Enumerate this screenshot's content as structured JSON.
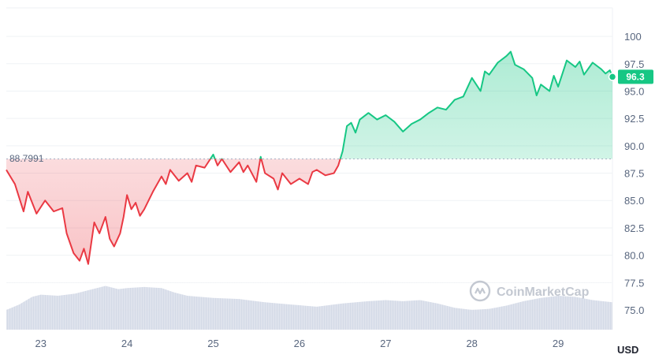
{
  "chart_data": {
    "type": "line",
    "title": "",
    "currency": "USD",
    "watermark": "CoinMarketCap",
    "baseline_value": 88.7991,
    "baseline_label": "88.7991",
    "current_price_label": "96.3",
    "current_price": 96.3,
    "ylim": [
      73.2,
      102.6
    ],
    "y_ticks": [
      75.0,
      77.5,
      80.0,
      82.5,
      85.0,
      87.5,
      90.0,
      92.5,
      95.0,
      97.5,
      100
    ],
    "y_tick_labels": [
      "75.0",
      "77.5",
      "80.0",
      "82.5",
      "85.0",
      "87.5",
      "90.0",
      "92.5",
      "95.0",
      "97.5",
      "100"
    ],
    "xlim": [
      22.6,
      29.63
    ],
    "x_ticks": [
      23,
      24,
      25,
      26,
      27,
      28,
      29
    ],
    "x_tick_labels": [
      "23",
      "24",
      "25",
      "26",
      "27",
      "28",
      "29"
    ],
    "colors": {
      "up": "#16c784",
      "down": "#ea3943",
      "volume": "#cfd6e4",
      "grid": "#eff2f5",
      "baseline": "#a6b0c3"
    },
    "series": [
      {
        "name": "price",
        "x": [
          22.6,
          22.7,
          22.8,
          22.85,
          22.95,
          23.05,
          23.15,
          23.25,
          23.3,
          23.38,
          23.45,
          23.5,
          23.55,
          23.62,
          23.68,
          23.75,
          23.8,
          23.85,
          23.92,
          23.96,
          24.0,
          24.05,
          24.1,
          24.15,
          24.2,
          24.3,
          24.4,
          24.45,
          24.5,
          24.6,
          24.7,
          24.75,
          24.8,
          24.9,
          25.0,
          25.05,
          25.1,
          25.2,
          25.3,
          25.35,
          25.4,
          25.5,
          25.55,
          25.6,
          25.7,
          25.75,
          25.8,
          25.9,
          26.0,
          26.1,
          26.15,
          26.2,
          26.3,
          26.4,
          26.45,
          26.5,
          26.55,
          26.6,
          26.65,
          26.7,
          26.8,
          26.9,
          27.0,
          27.1,
          27.2,
          27.3,
          27.4,
          27.5,
          27.6,
          27.7,
          27.8,
          27.9,
          28.0,
          28.1,
          28.15,
          28.2,
          28.3,
          28.4,
          28.45,
          28.5,
          28.6,
          28.7,
          28.75,
          28.8,
          28.9,
          28.95,
          29.0,
          29.05,
          29.1,
          29.2,
          29.25,
          29.3,
          29.4,
          29.5,
          29.55,
          29.6,
          29.63
        ],
        "y": [
          87.8,
          86.5,
          84.0,
          85.8,
          83.8,
          85.0,
          84.0,
          84.3,
          82.0,
          80.2,
          79.5,
          80.6,
          79.2,
          83.0,
          82.0,
          83.5,
          81.5,
          80.8,
          82.0,
          83.5,
          85.5,
          84.2,
          84.8,
          83.6,
          84.2,
          85.8,
          87.2,
          86.5,
          87.8,
          86.8,
          87.5,
          86.7,
          88.2,
          88.0,
          89.2,
          88.2,
          88.8,
          87.6,
          88.5,
          87.6,
          88.2,
          86.7,
          89.0,
          87.5,
          87.0,
          86.0,
          87.5,
          86.5,
          87.0,
          86.5,
          87.6,
          87.8,
          87.3,
          87.5,
          88.2,
          89.5,
          91.8,
          92.1,
          91.2,
          92.4,
          93.0,
          92.4,
          92.8,
          92.2,
          91.3,
          92.0,
          92.4,
          93.0,
          93.5,
          93.3,
          94.2,
          94.5,
          96.2,
          95.0,
          96.8,
          96.5,
          97.6,
          98.2,
          98.6,
          97.4,
          97.0,
          96.2,
          94.6,
          95.6,
          95.0,
          96.4,
          95.4,
          96.6,
          97.8,
          97.2,
          97.7,
          96.5,
          97.6,
          97.0,
          96.6,
          96.9,
          96.3
        ]
      },
      {
        "name": "volume",
        "x": [
          22.6,
          22.75,
          22.9,
          23.0,
          23.2,
          23.4,
          23.6,
          23.75,
          23.9,
          24.0,
          24.2,
          24.4,
          24.55,
          24.7,
          25.0,
          25.3,
          25.6,
          25.9,
          26.2,
          26.5,
          26.8,
          27.0,
          27.2,
          27.4,
          27.6,
          27.8,
          28.0,
          28.2,
          28.4,
          28.6,
          28.8,
          29.0,
          29.2,
          29.4,
          29.63
        ],
        "y": [
          75.0,
          75.5,
          76.2,
          76.4,
          76.3,
          76.5,
          76.9,
          77.2,
          76.9,
          77.0,
          77.1,
          77.0,
          76.6,
          76.3,
          76.1,
          76.0,
          75.7,
          75.5,
          75.3,
          75.6,
          75.8,
          75.9,
          75.8,
          75.9,
          75.6,
          75.2,
          75.0,
          75.1,
          75.4,
          75.8,
          76.1,
          76.3,
          76.2,
          75.9,
          75.7
        ]
      }
    ]
  }
}
